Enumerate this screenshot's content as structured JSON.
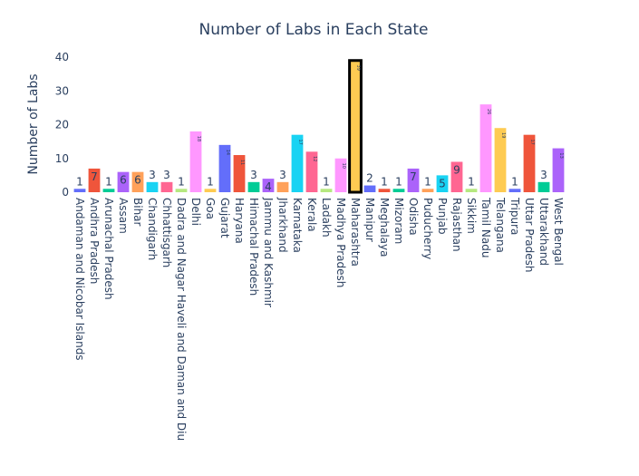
{
  "chart_data": {
    "type": "bar",
    "title": "Number of Labs in Each State",
    "xlabel": "",
    "ylabel": "Number of Labs",
    "ylim": [
      0,
      40
    ],
    "yticks": [
      0,
      10,
      20,
      30,
      40
    ],
    "grid": false,
    "legend": "none",
    "highlighted_category": "Maharashtra",
    "categories": [
      "Andaman and Nicobar Islands",
      "Andhra Pradesh",
      "Arunachal Pradesh",
      "Assam",
      "Bihar",
      "Chandigarh",
      "Chhattisgarh",
      "Dadra and Nagar Haveli and Daman and Diu",
      "Delhi",
      "Goa",
      "Gujarat",
      "Haryana",
      "Himachal Pradesh",
      "Jammu and Kashmir",
      "Jharkhand",
      "Karnataka",
      "Kerala",
      "Ladakh",
      "Madhya Pradesh",
      "Maharashtra",
      "Manipur",
      "Meghalaya",
      "Mizoram",
      "Odisha",
      "Puducherry",
      "Punjab",
      "Rajasthan",
      "Sikkim",
      "Tamil Nadu",
      "Telangana",
      "Tripura",
      "Uttar Pradesh",
      "Uttarakhand",
      "West Bengal"
    ],
    "values": [
      1,
      7,
      1,
      6,
      6,
      3,
      3,
      1,
      18,
      1,
      14,
      11,
      3,
      4,
      3,
      17,
      12,
      1,
      10,
      39,
      2,
      1,
      1,
      7,
      1,
      5,
      9,
      1,
      26,
      19,
      1,
      17,
      3,
      13
    ],
    "labels": [
      "1",
      "7",
      "1",
      "6",
      "6",
      "3",
      "3",
      "1",
      "18",
      "1",
      "14",
      "11",
      "3",
      "4",
      "3",
      "17",
      "12",
      "1",
      "10",
      "39",
      "2",
      "1",
      "1",
      "7",
      "1",
      "5",
      "9",
      "1",
      "26",
      "19",
      "1",
      "17",
      "3",
      "13"
    ],
    "colors": [
      "#636efa",
      "#EF553B",
      "#00cc96",
      "#ab63fa",
      "#FFA15A",
      "#19d3f3",
      "#FF6692",
      "#B6E880",
      "#FF97FF",
      "#FECB52"
    ],
    "highlight_color": "#FECB52",
    "highlight_outline": "#000000"
  }
}
